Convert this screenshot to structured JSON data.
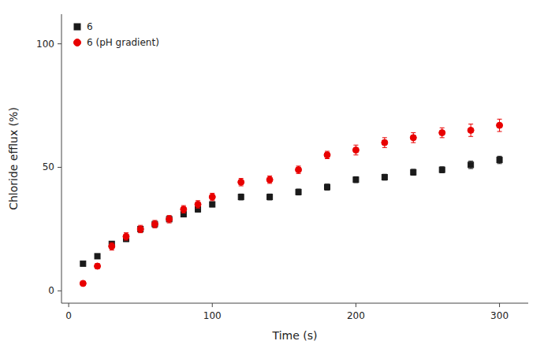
{
  "chart_data": {
    "type": "scatter",
    "xlabel": "Time (s)",
    "ylabel": "Chloride efflux (%)",
    "xlim": [
      -5,
      320
    ],
    "ylim": [
      -5,
      112
    ],
    "xticks": [
      0,
      100,
      200,
      300
    ],
    "yticks": [
      0,
      50,
      100
    ],
    "legend": "upper left",
    "series": [
      {
        "name": "6",
        "color": "#1a1a1a",
        "marker": "square",
        "x": [
          10,
          20,
          30,
          40,
          50,
          60,
          70,
          80,
          90,
          100,
          120,
          140,
          160,
          180,
          200,
          220,
          240,
          260,
          280,
          300
        ],
        "values": [
          11,
          14,
          19,
          21,
          25,
          27,
          29,
          31,
          33,
          35,
          38,
          38,
          40,
          42,
          45,
          46,
          48,
          49,
          51,
          53
        ],
        "errors": [
          0.8,
          0.8,
          1.0,
          1.0,
          1.0,
          1.0,
          1.0,
          1.0,
          1.0,
          1.0,
          1.2,
          1.2,
          1.2,
          1.2,
          1.2,
          1.2,
          1.2,
          1.2,
          1.5,
          1.5
        ]
      },
      {
        "name": "6 (pH gradient)",
        "color": "#e80000",
        "marker": "circle",
        "x": [
          10,
          20,
          30,
          40,
          50,
          60,
          70,
          80,
          90,
          100,
          120,
          140,
          160,
          180,
          200,
          220,
          240,
          260,
          280,
          300
        ],
        "values": [
          3,
          10,
          18,
          22,
          25,
          27,
          29,
          33,
          35,
          38,
          44,
          45,
          49,
          55,
          57,
          60,
          62,
          64,
          65,
          67
        ],
        "errors": [
          0.5,
          1.0,
          1.5,
          1.5,
          1.5,
          1.5,
          1.5,
          1.5,
          1.5,
          1.5,
          1.5,
          1.5,
          1.5,
          1.5,
          2.0,
          2.0,
          2.0,
          2.0,
          2.5,
          2.5
        ]
      }
    ]
  }
}
